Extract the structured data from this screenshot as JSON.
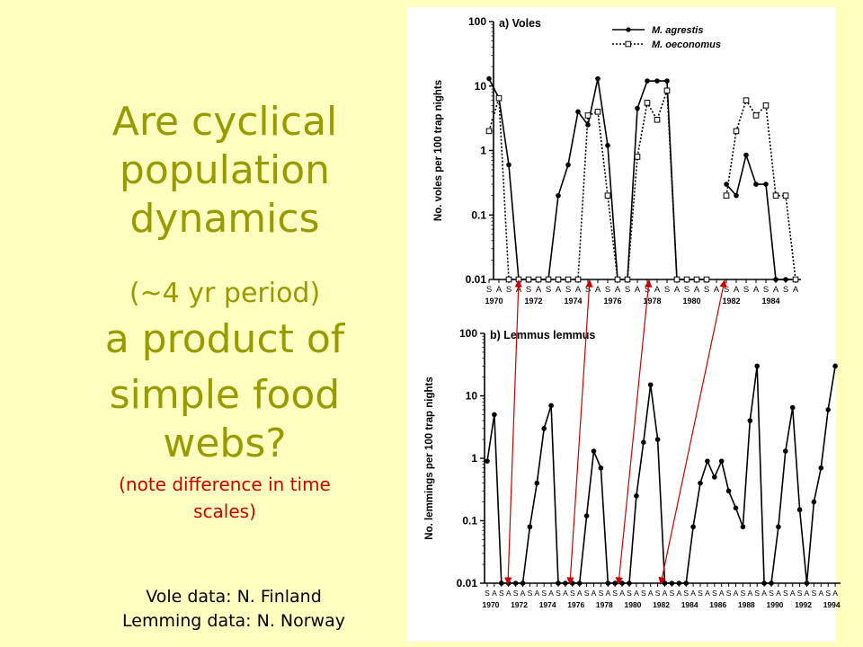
{
  "slide": {
    "title_line1": "Are cyclical",
    "title_line2": "population",
    "title_line3": "dynamics",
    "title_line4": "(~4 yr period)",
    "title_line5": "a product of",
    "title_line6": "simple food",
    "title_line7": "webs?",
    "note_line1": "(note difference in time",
    "note_line2": "scales)",
    "source_line1": "Vole data: N. Finland",
    "source_line2": "Lemming data: N. Norway"
  },
  "colors": {
    "background": "#ffffc0",
    "title": "#999900",
    "note": "#cc0000",
    "arrows": "#cc0000"
  },
  "chart_data": [
    {
      "type": "line",
      "panel_label": "a) Voles",
      "ylabel": "No. voles per 100 trap nights",
      "yscale": "log",
      "ylim": [
        0.01,
        100
      ],
      "y_ticks": [
        "100",
        "10",
        "1",
        "0.1",
        "0.01"
      ],
      "season_labels": [
        "S",
        "A",
        "S",
        "A",
        "S",
        "A",
        "S",
        "A",
        "S",
        "A",
        "S",
        "A",
        "S",
        "A",
        "S",
        "A",
        "S",
        "A",
        "S",
        "A",
        "S",
        "A",
        "S",
        "A",
        "S",
        "A",
        "S",
        "A",
        "S",
        "A",
        "S",
        "A"
      ],
      "year_labels": [
        "1970",
        "1972",
        "1974",
        "1976",
        "1978",
        "1980",
        "1982",
        "1984"
      ],
      "legend_position": "top-right",
      "series": [
        {
          "name": "M. agrestis",
          "style": "solid-filled-circle",
          "values": [
            13,
            6.5,
            0.6,
            0.01,
            0.01,
            0.01,
            0.01,
            0.2,
            0.6,
            4,
            2.5,
            13,
            1.2,
            0.01,
            0.01,
            4.5,
            12,
            12,
            12,
            0.01,
            0.01,
            0.01,
            0.01,
            null,
            0.3,
            0.2,
            0.85,
            0.3,
            0.3,
            0.01,
            0.01,
            0.01
          ]
        },
        {
          "name": "M. oeconomus",
          "style": "dotted-open-square",
          "values": [
            2,
            6.5,
            0.01,
            0.01,
            0.01,
            0.01,
            0.01,
            0.01,
            0.01,
            0.01,
            3.5,
            4,
            0.2,
            0.01,
            0.01,
            0.8,
            5.5,
            3,
            8.5,
            0.01,
            0.01,
            0.01,
            0.01,
            null,
            0.2,
            2,
            6,
            3.5,
            5,
            0.2,
            0.2,
            0.01
          ]
        }
      ]
    },
    {
      "type": "line",
      "panel_label": "b) Lemmus lemmus",
      "ylabel": "No. lemmings per 100 trap nights",
      "yscale": "log",
      "ylim": [
        0.01,
        100
      ],
      "y_ticks": [
        "100",
        "10",
        "1",
        "0.1",
        "0.01"
      ],
      "season_labels": [
        "S",
        "A",
        "S",
        "A",
        "S",
        "A",
        "S",
        "A",
        "S",
        "A",
        "S",
        "A",
        "S",
        "A",
        "S",
        "A",
        "S",
        "A",
        "S",
        "A",
        "S",
        "A",
        "S",
        "A",
        "S",
        "A",
        "S",
        "A",
        "S",
        "A",
        "S",
        "A",
        "S",
        "A",
        "S",
        "A",
        "S",
        "A",
        "S",
        "A",
        "S",
        "A",
        "S",
        "A",
        "S",
        "A",
        "S",
        "A",
        "S",
        "A"
      ],
      "year_labels": [
        "1970",
        "1972",
        "1974",
        "1976",
        "1978",
        "1980",
        "1982",
        "1984",
        "1986",
        "1988",
        "1990",
        "1992",
        "1994"
      ],
      "series": [
        {
          "name": "Lemmus lemmus",
          "values": [
            0.9,
            5,
            0.01,
            0.01,
            0.01,
            0.01,
            0.08,
            0.4,
            3,
            7,
            0.01,
            0.01,
            0.01,
            0.01,
            0.12,
            1.3,
            0.7,
            0.01,
            0.01,
            0.01,
            0.01,
            0.25,
            1.8,
            15,
            2,
            0.01,
            0.01,
            0.01,
            0.01,
            0.08,
            0.4,
            0.9,
            0.5,
            0.9,
            0.3,
            0.16,
            0.08,
            4,
            30,
            0.01,
            0.01,
            0.08,
            1.3,
            6.5,
            0.15,
            0.01,
            0.2,
            0.7,
            6,
            30
          ]
        }
      ]
    }
  ]
}
